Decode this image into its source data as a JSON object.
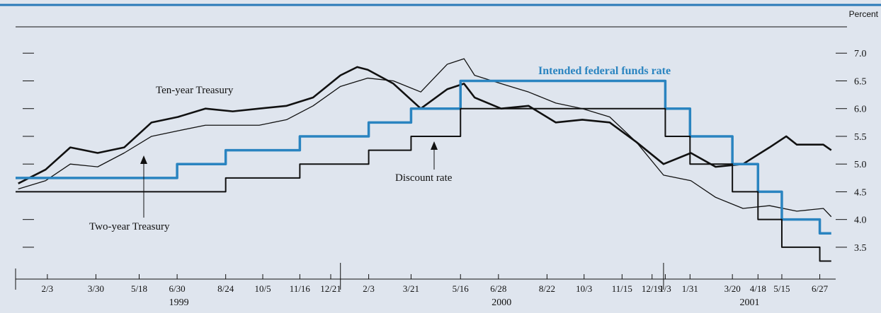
{
  "chart_data": {
    "type": "line",
    "y_axis_label": "Percent",
    "xlim": [
      "1998-12-29",
      "2001-07-15"
    ],
    "ylim": [
      2.9,
      7.5
    ],
    "yticks": [
      {
        "value": 3.5,
        "label": "3.5"
      },
      {
        "value": 4.0,
        "label": "4.0"
      },
      {
        "value": 4.5,
        "label": "4.5"
      },
      {
        "value": 5.0,
        "label": "5.0"
      },
      {
        "value": 5.5,
        "label": "5.5"
      },
      {
        "value": 6.0,
        "label": "6.0"
      },
      {
        "value": 6.5,
        "label": "6.5"
      },
      {
        "value": 7.0,
        "label": "7.0"
      }
    ],
    "xticks": [
      {
        "value": "1999-02-03",
        "label": "2/3"
      },
      {
        "value": "1999-03-30",
        "label": "3/30"
      },
      {
        "value": "1999-05-18",
        "label": "5/18"
      },
      {
        "value": "1999-06-30",
        "label": "6/30"
      },
      {
        "value": "1999-08-24",
        "label": "8/24"
      },
      {
        "value": "1999-10-05",
        "label": "10/5"
      },
      {
        "value": "1999-11-16",
        "label": "11/16"
      },
      {
        "value": "1999-12-21",
        "label": "12/21"
      },
      {
        "value": "2000-02-02",
        "label": "2/3"
      },
      {
        "value": "2000-03-21",
        "label": "3/21"
      },
      {
        "value": "2000-05-16",
        "label": "5/16"
      },
      {
        "value": "2000-06-28",
        "label": "6/28"
      },
      {
        "value": "2000-08-22",
        "label": "8/22"
      },
      {
        "value": "2000-10-03",
        "label": "10/3"
      },
      {
        "value": "2000-11-15",
        "label": "11/15"
      },
      {
        "value": "2000-12-19",
        "label": "12/19"
      },
      {
        "value": "2001-01-03",
        "label": "1/3"
      },
      {
        "value": "2001-01-31",
        "label": "1/31"
      },
      {
        "value": "2001-03-20",
        "label": "3/20"
      },
      {
        "value": "2001-04-18",
        "label": "4/18"
      },
      {
        "value": "2001-05-15",
        "label": "5/15"
      },
      {
        "value": "2001-06-27",
        "label": "6/27"
      }
    ],
    "years": [
      "1999",
      "2000",
      "2001"
    ],
    "series": [
      {
        "name": "Ten-year Treasury",
        "color": "#111111",
        "x": [
          "1999-01-01",
          "1999-02-01",
          "1999-03-01",
          "1999-04-01",
          "1999-05-01",
          "1999-06-01",
          "1999-07-01",
          "1999-08-01",
          "1999-09-01",
          "1999-10-01",
          "1999-11-01",
          "1999-12-01",
          "2000-01-01",
          "2000-01-20",
          "2000-02-01",
          "2000-03-01",
          "2000-04-01",
          "2000-05-01",
          "2000-05-20",
          "2000-06-01",
          "2000-07-01",
          "2000-08-01",
          "2000-09-01",
          "2000-10-01",
          "2000-11-01",
          "2000-12-01",
          "2001-01-01",
          "2001-02-01",
          "2001-03-01",
          "2001-04-01",
          "2001-05-01",
          "2001-05-20",
          "2001-06-01",
          "2001-07-01",
          "2001-07-10"
        ],
        "values": [
          4.65,
          4.9,
          5.3,
          5.2,
          5.3,
          5.75,
          5.85,
          6.0,
          5.95,
          6.0,
          6.05,
          6.2,
          6.6,
          6.75,
          6.7,
          6.45,
          6.0,
          6.35,
          6.45,
          6.2,
          6.0,
          6.05,
          5.75,
          5.8,
          5.75,
          5.4,
          5.0,
          5.2,
          4.95,
          5.0,
          5.3,
          5.5,
          5.35,
          5.35,
          5.25
        ]
      },
      {
        "name": "Two-year Treasury",
        "color": "#111111",
        "x": [
          "1999-01-01",
          "1999-02-01",
          "1999-03-01",
          "1999-04-01",
          "1999-05-01",
          "1999-06-01",
          "1999-07-01",
          "1999-08-01",
          "1999-09-01",
          "1999-10-01",
          "1999-11-01",
          "1999-12-01",
          "2000-01-01",
          "2000-02-01",
          "2000-03-01",
          "2000-04-01",
          "2000-05-01",
          "2000-05-20",
          "2000-06-01",
          "2000-07-01",
          "2000-08-01",
          "2000-09-01",
          "2000-10-01",
          "2000-11-01",
          "2000-12-01",
          "2001-01-01",
          "2001-02-01",
          "2001-03-01",
          "2001-04-01",
          "2001-05-01",
          "2001-06-01",
          "2001-07-01",
          "2001-07-10"
        ],
        "values": [
          4.55,
          4.7,
          5.0,
          4.95,
          5.2,
          5.5,
          5.6,
          5.7,
          5.7,
          5.7,
          5.8,
          6.05,
          6.4,
          6.55,
          6.5,
          6.3,
          6.8,
          6.9,
          6.6,
          6.45,
          6.3,
          6.1,
          6.0,
          5.85,
          5.4,
          4.8,
          4.7,
          4.4,
          4.2,
          4.25,
          4.15,
          4.2,
          4.05
        ]
      },
      {
        "name": "Intended federal funds rate",
        "color": "#2a84c0",
        "step": true,
        "x": [
          "1998-12-29",
          "1999-06-30",
          "1999-08-24",
          "1999-11-16",
          "2000-02-02",
          "2000-03-21",
          "2000-05-16",
          "2001-01-03",
          "2001-01-31",
          "2001-03-20",
          "2001-04-18",
          "2001-05-15",
          "2001-06-27",
          "2001-07-10"
        ],
        "values": [
          4.75,
          5.0,
          5.25,
          5.5,
          5.75,
          6.0,
          6.5,
          6.0,
          5.5,
          5.0,
          4.5,
          4.0,
          3.75,
          3.75
        ]
      },
      {
        "name": "Discount rate",
        "color": "#111111",
        "step": true,
        "x": [
          "1998-12-29",
          "1999-08-24",
          "1999-11-16",
          "2000-02-02",
          "2000-03-21",
          "2000-05-16",
          "2001-01-03",
          "2001-01-31",
          "2001-03-20",
          "2001-04-18",
          "2001-05-15",
          "2001-06-27",
          "2001-07-10"
        ],
        "values": [
          4.5,
          4.75,
          5.0,
          5.25,
          5.5,
          6.0,
          5.5,
          5.0,
          4.5,
          4.0,
          3.5,
          3.25,
          3.25
        ]
      }
    ]
  }
}
